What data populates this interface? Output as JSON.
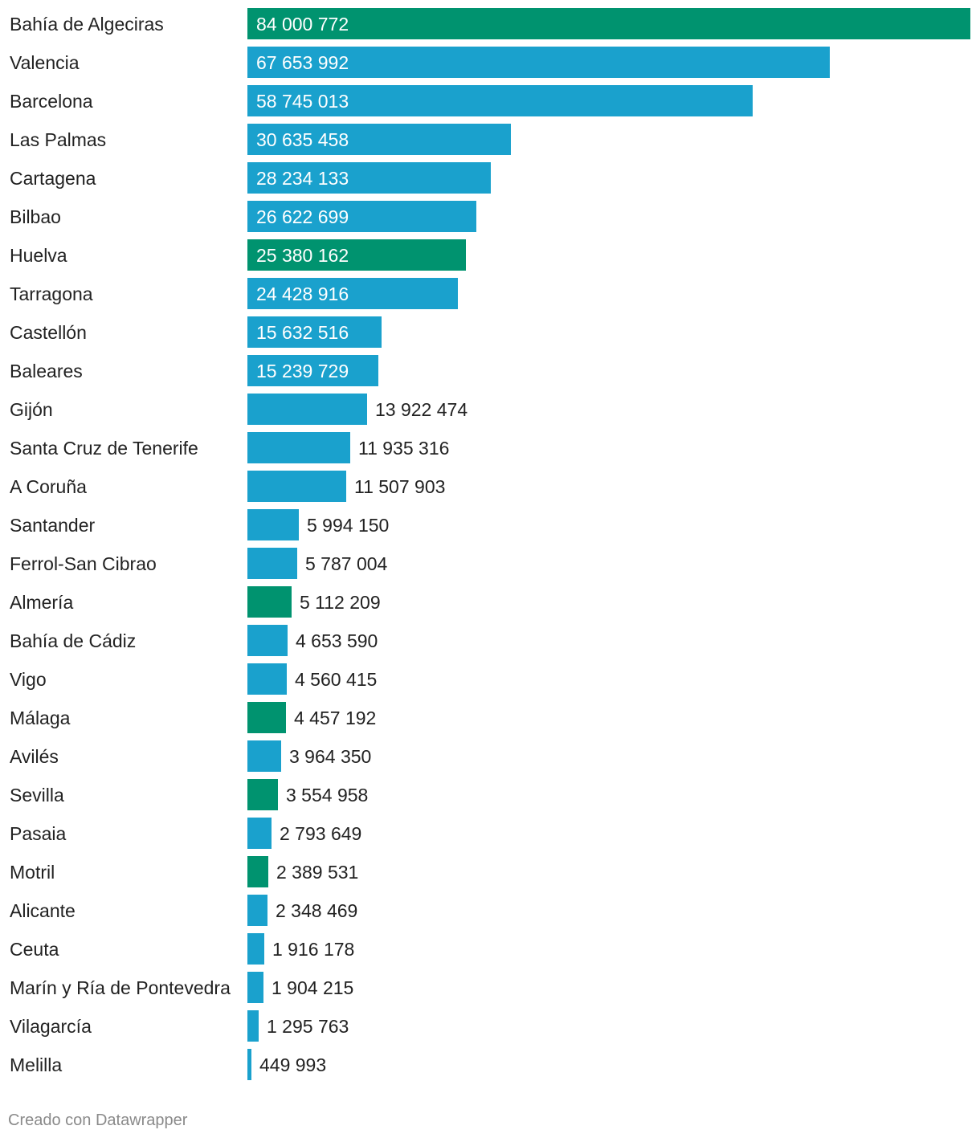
{
  "chart_data": {
    "type": "bar",
    "orientation": "horizontal",
    "title": "",
    "xlabel": "",
    "ylabel": "",
    "xlim": [
      0,
      84000772
    ],
    "colors": {
      "default": "#1aa1cd",
      "highlight": "#00936f"
    },
    "categories": [
      "Bahía de Algeciras",
      "Valencia",
      "Barcelona",
      "Las Palmas",
      "Cartagena",
      "Bilbao",
      "Huelva",
      "Tarragona",
      "Castellón",
      "Baleares",
      "Gijón",
      "Santa Cruz de Tenerife",
      "A Coruña",
      "Santander",
      "Ferrol-San Cibrao",
      "Almería",
      "Bahía de Cádiz",
      "Vigo",
      "Málaga",
      "Avilés",
      "Sevilla",
      "Pasaia",
      "Motril",
      "Alicante",
      "Ceuta",
      "Marín y Ría de Pontevedra",
      "Vilagarcía",
      "Melilla"
    ],
    "values": [
      84000772,
      67653992,
      58745013,
      30635458,
      28234133,
      26622699,
      25380162,
      24428916,
      15632516,
      15239729,
      13922474,
      11935316,
      11507903,
      5994150,
      5787004,
      5112209,
      4653590,
      4560415,
      4457192,
      3964350,
      3554958,
      2793649,
      2389531,
      2348469,
      1916178,
      1904215,
      1295763,
      449993
    ],
    "value_labels": [
      "84 000 772",
      "67 653 992",
      "58 745 013",
      "30 635 458",
      "28 234 133",
      "26 622 699",
      "25 380 162",
      "24 428 916",
      "15 632 516",
      "15 239 729",
      "13 922 474",
      "11 935 316",
      "11 507 903",
      "5 994 150",
      "5 787 004",
      "5 112 209",
      "4 653 590",
      "4 560 415",
      "4 457 192",
      "3 964 350",
      "3 554 958",
      "2 793 649",
      "2 389 531",
      "2 348 469",
      "1 916 178",
      "1 904 215",
      "1 295 763",
      "449 993"
    ],
    "highlighted": [
      "Bahía de Algeciras",
      "Huelva",
      "Almería",
      "Málaga",
      "Sevilla",
      "Motril"
    ]
  },
  "footer": {
    "credit": "Creado con Datawrapper"
  }
}
